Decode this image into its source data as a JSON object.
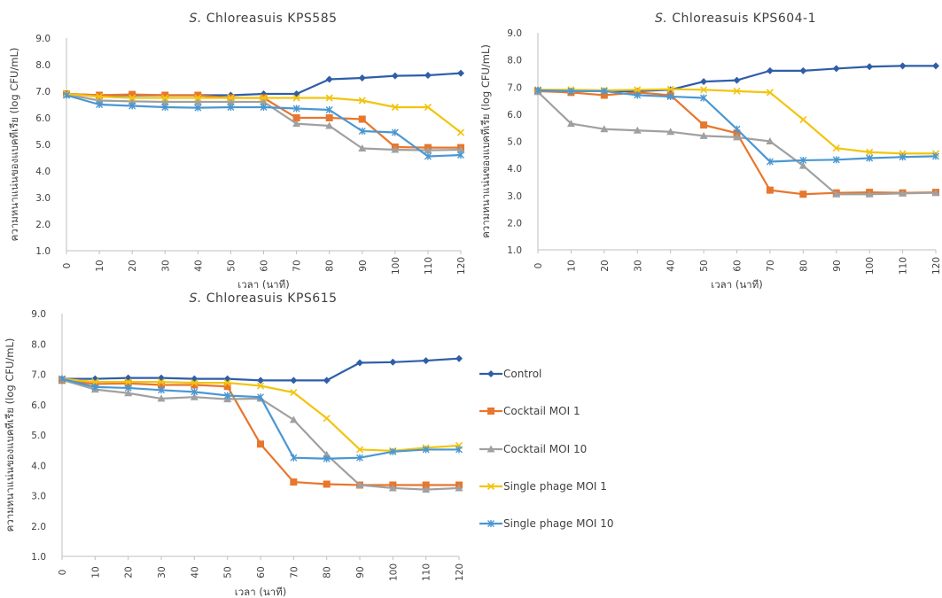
{
  "colors": {
    "control": "#2f5ea8",
    "cocktail_moi1": "#e8762c",
    "cocktail_moi10": "#a0a0a0",
    "single_moi1": "#f2c40f",
    "single_moi10": "#4a97d2",
    "axis": "#bfbfbf"
  },
  "legend": {
    "placement": "right",
    "entries": [
      {
        "label": "Control",
        "color": "#2f5ea8",
        "marker": "diamond"
      },
      {
        "label": "Cocktail MOI 1",
        "color": "#e8762c",
        "marker": "square"
      },
      {
        "label": "Cocktail MOI 10",
        "color": "#a0a0a0",
        "marker": "triangle"
      },
      {
        "label": "Single phage MOI 1",
        "color": "#f2c40f",
        "marker": "x"
      },
      {
        "label": "Single phage MOI 10",
        "color": "#4a97d2",
        "marker": "star"
      }
    ]
  },
  "chart_data": [
    {
      "type": "line",
      "title_prefix": "S.",
      "title_rest": "Chloreasuis KPS585",
      "xlabel": "เวลา (นาที)",
      "ylabel": "ความหนาแน่นของแบคทีเรีย (log CFU/mL)",
      "x": [
        0,
        10,
        20,
        30,
        40,
        50,
        60,
        70,
        80,
        90,
        100,
        110,
        120
      ],
      "ylim": [
        1.0,
        9.0
      ],
      "yticks": [
        "1.0",
        "2.0",
        "3.0",
        "4.0",
        "5.0",
        "6.0",
        "7.0",
        "8.0",
        "9.0"
      ],
      "grid": false,
      "series": [
        {
          "name": "Control",
          "values": [
            6.9,
            6.85,
            6.85,
            6.85,
            6.85,
            6.85,
            6.9,
            6.9,
            7.45,
            7.5,
            7.58,
            7.6,
            7.68
          ]
        },
        {
          "name": "Cocktail MOI 1",
          "values": [
            6.9,
            6.85,
            6.88,
            6.85,
            6.85,
            6.75,
            6.75,
            6.0,
            6.0,
            5.95,
            4.9,
            4.88,
            4.88
          ]
        },
        {
          "name": "Cocktail MOI 10",
          "values": [
            6.88,
            6.65,
            6.62,
            6.6,
            6.6,
            6.6,
            6.6,
            5.78,
            5.7,
            4.85,
            4.8,
            4.78,
            4.8
          ]
        },
        {
          "name": "Single phage MOI 1",
          "values": [
            6.9,
            6.8,
            6.75,
            6.75,
            6.75,
            6.75,
            6.75,
            6.75,
            6.75,
            6.65,
            6.4,
            6.4,
            5.45
          ]
        },
        {
          "name": "Single phage MOI 10",
          "values": [
            6.85,
            6.5,
            6.45,
            6.4,
            6.38,
            6.4,
            6.4,
            6.35,
            6.3,
            5.5,
            5.45,
            4.55,
            4.6
          ]
        }
      ]
    },
    {
      "type": "line",
      "title_prefix": "S.",
      "title_rest": "Chloreasuis KPS604-1",
      "xlabel": "เวลา (นาที)",
      "ylabel": "ความหนาแน่นของแบคทีเรีย (log CFU/mL)",
      "x": [
        0,
        10,
        20,
        30,
        40,
        50,
        60,
        70,
        80,
        90,
        100,
        110,
        120
      ],
      "ylim": [
        1.0,
        9.0
      ],
      "yticks": [
        "1.0",
        "2.0",
        "3.0",
        "4.0",
        "5.0",
        "6.0",
        "7.0",
        "8.0",
        "9.0"
      ],
      "grid": false,
      "series": [
        {
          "name": "Control",
          "values": [
            6.88,
            6.85,
            6.85,
            6.85,
            6.9,
            7.2,
            7.25,
            7.6,
            7.6,
            7.68,
            7.75,
            7.78,
            7.78
          ]
        },
        {
          "name": "Cocktail MOI 1",
          "values": [
            6.85,
            6.8,
            6.7,
            6.8,
            6.7,
            5.6,
            5.3,
            3.2,
            3.05,
            3.1,
            3.12,
            3.1,
            3.12
          ]
        },
        {
          "name": "Cocktail MOI 10",
          "values": [
            6.82,
            5.65,
            5.45,
            5.4,
            5.35,
            5.2,
            5.15,
            5.0,
            4.1,
            3.05,
            3.05,
            3.08,
            3.1
          ]
        },
        {
          "name": "Single phage MOI 1",
          "values": [
            6.9,
            6.9,
            6.88,
            6.9,
            6.92,
            6.9,
            6.85,
            6.8,
            5.8,
            4.75,
            4.6,
            4.55,
            4.55
          ]
        },
        {
          "name": "Single phage MOI 10",
          "values": [
            6.88,
            6.85,
            6.85,
            6.7,
            6.65,
            6.6,
            5.45,
            4.25,
            4.3,
            4.32,
            4.38,
            4.42,
            4.45
          ]
        }
      ]
    },
    {
      "type": "line",
      "title_prefix": "S.",
      "title_rest": "Chloreasuis KPS615",
      "xlabel": "เวลา (นาที)",
      "ylabel": "ความหนาแน่นของแบคทีเรีย (log CFU/mL)",
      "x": [
        0,
        10,
        20,
        30,
        40,
        50,
        60,
        70,
        80,
        90,
        100,
        110,
        120
      ],
      "ylim": [
        1.0,
        9.0
      ],
      "yticks": [
        "1.0",
        "2.0",
        "3.0",
        "4.0",
        "5.0",
        "6.0",
        "7.0",
        "8.0",
        "9.0"
      ],
      "grid": false,
      "series": [
        {
          "name": "Control",
          "values": [
            6.85,
            6.85,
            6.88,
            6.88,
            6.85,
            6.85,
            6.8,
            6.8,
            6.8,
            7.38,
            7.4,
            7.45,
            7.52
          ]
        },
        {
          "name": "Cocktail MOI 1",
          "values": [
            6.8,
            6.68,
            6.7,
            6.65,
            6.65,
            6.6,
            4.7,
            3.45,
            3.38,
            3.35,
            3.35,
            3.35,
            3.35
          ]
        },
        {
          "name": "Cocktail MOI 10",
          "values": [
            6.82,
            6.5,
            6.38,
            6.2,
            6.25,
            6.18,
            6.2,
            5.5,
            4.35,
            3.35,
            3.25,
            3.2,
            3.25
          ]
        },
        {
          "name": "Single phage MOI 1",
          "values": [
            6.85,
            6.75,
            6.75,
            6.75,
            6.72,
            6.72,
            6.62,
            6.4,
            5.55,
            4.52,
            4.48,
            4.58,
            4.65
          ]
        },
        {
          "name": "Single phage MOI 10",
          "values": [
            6.85,
            6.58,
            6.55,
            6.48,
            6.42,
            6.3,
            6.25,
            4.25,
            4.22,
            4.25,
            4.45,
            4.52,
            4.52
          ]
        }
      ]
    }
  ]
}
